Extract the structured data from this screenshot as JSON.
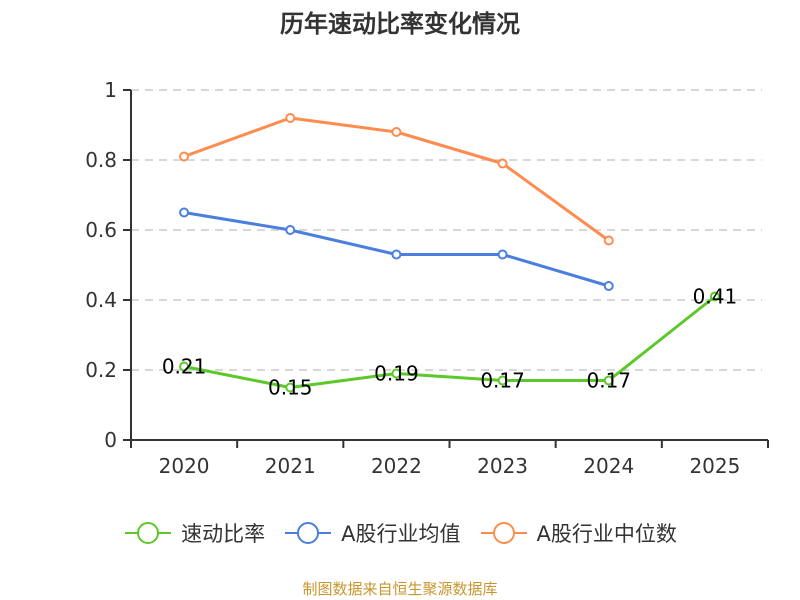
{
  "title": "历年速动比率变化情况",
  "source_note": "制图数据来自恒生聚源数据库",
  "chart_data": {
    "type": "line",
    "title": "历年速动比率变化情况",
    "xlabel": "",
    "ylabel": "",
    "categories": [
      "2020",
      "2021",
      "2022",
      "2023",
      "2024",
      "2025"
    ],
    "ylim": [
      0,
      1
    ],
    "yticks": [
      0,
      0.2,
      0.4,
      0.6,
      0.8,
      1
    ],
    "ytick_labels": [
      "0",
      "0.2",
      "0.4",
      "0.6",
      "0.8",
      "1"
    ],
    "grid": true,
    "legend_position": "bottom",
    "series": [
      {
        "name": "速动比率",
        "color": "#5cc82a",
        "values": [
          0.21,
          0.15,
          0.19,
          0.17,
          0.17,
          0.41
        ],
        "show_labels": true,
        "labels": [
          "0.21",
          "0.15",
          "0.19",
          "0.17",
          "0.17",
          "0.41"
        ]
      },
      {
        "name": "A股行业均值",
        "color": "#4a7fe0",
        "values": [
          0.65,
          0.6,
          0.53,
          0.53,
          0.44,
          null
        ],
        "show_labels": false
      },
      {
        "name": "A股行业中位数",
        "color": "#ff8c4f",
        "values": [
          0.81,
          0.92,
          0.88,
          0.79,
          0.57,
          null
        ],
        "show_labels": false
      }
    ]
  }
}
